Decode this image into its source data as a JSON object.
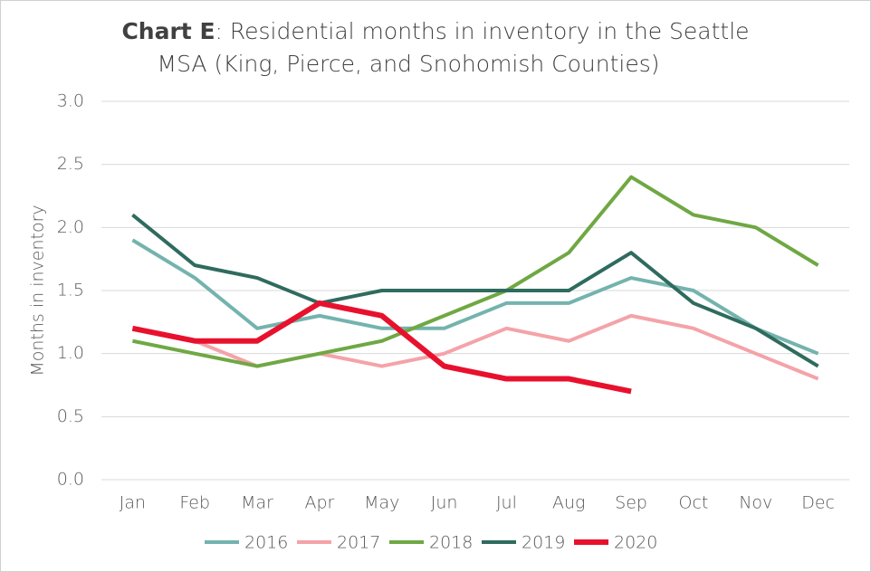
{
  "chart_data": {
    "type": "line",
    "title": [
      "Chart E",
      ": Residential months in inventory in the Seattle",
      "MSA (King, Pierce, and Snohomish Counties)"
    ],
    "y_label": "Months in inventory",
    "categories": [
      "Jan",
      "Feb",
      "Mar",
      "Apr",
      "May",
      "Jun",
      "Jul",
      "Aug",
      "Sep",
      "Oct",
      "Nov",
      "Dec"
    ],
    "series": [
      {
        "name": "2016",
        "color": "#74b3ae",
        "values": [
          1.9,
          1.6,
          1.2,
          1.3,
          1.2,
          1.2,
          1.4,
          1.4,
          1.6,
          1.5,
          1.2,
          1.0
        ]
      },
      {
        "name": "2017",
        "color": "#f4a3a8",
        "values": [
          1.2,
          1.1,
          0.9,
          1.0,
          0.9,
          1.0,
          1.2,
          1.1,
          1.3,
          1.2,
          1.0,
          0.8
        ]
      },
      {
        "name": "2018",
        "color": "#6fa843",
        "values": [
          1.1,
          1.0,
          0.9,
          1.0,
          1.1,
          1.3,
          1.5,
          1.8,
          2.4,
          2.1,
          2.0,
          1.7
        ]
      },
      {
        "name": "2019",
        "color": "#2f6b5e",
        "values": [
          2.1,
          1.7,
          1.6,
          1.4,
          1.5,
          1.5,
          1.5,
          1.5,
          1.8,
          1.4,
          1.2,
          0.9
        ]
      },
      {
        "name": "2020",
        "color": "#e8112d",
        "values": [
          1.2,
          1.1,
          1.1,
          1.4,
          1.3,
          0.9,
          0.8,
          0.8,
          0.7,
          null,
          null,
          null
        ]
      }
    ],
    "ylim": [
      0,
      3
    ],
    "yticks": [
      {
        "value": 0,
        "label": "0.0"
      },
      {
        "value": 0.5,
        "label": "0.5"
      },
      {
        "value": 1,
        "label": "1.0"
      },
      {
        "value": 1.5,
        "label": "1.5"
      },
      {
        "value": 2,
        "label": "2.0"
      },
      {
        "value": 2.5,
        "label": "2.5"
      },
      {
        "value": 3,
        "label": "3.0"
      }
    ],
    "grid": true,
    "legend": "bottom"
  }
}
